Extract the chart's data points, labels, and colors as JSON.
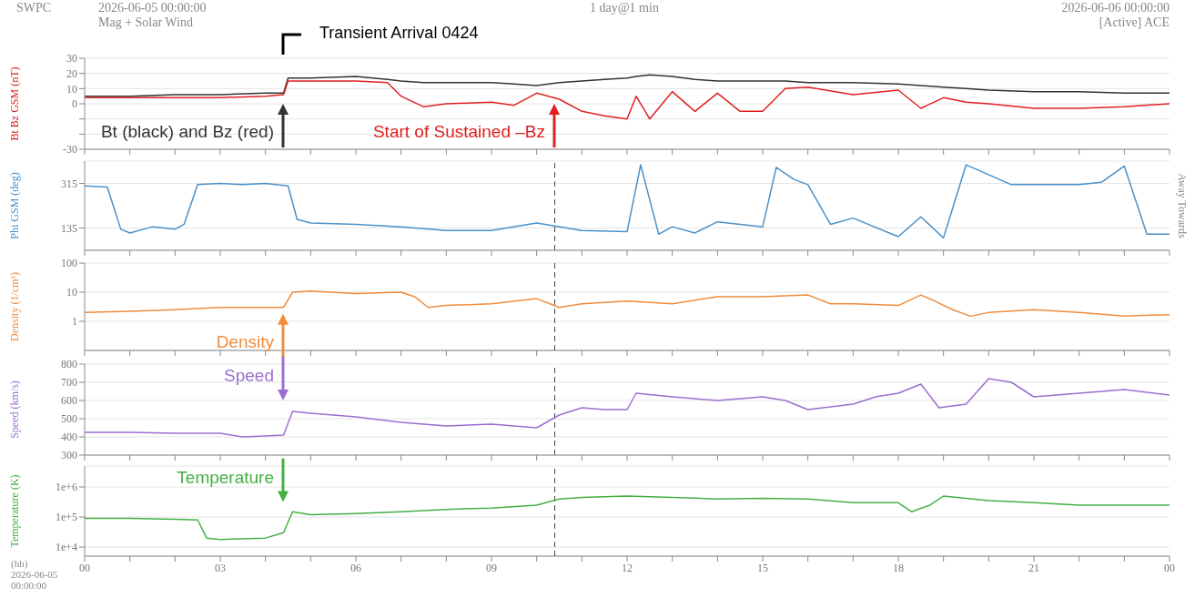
{
  "chart_data": [
    {
      "type": "line",
      "ylabel": "Bt  Bz GSM (nT)",
      "tick_labels": "y",
      "grid": "y",
      "annotations": [
        "SWPC",
        "2026-06-05 00:00:00",
        "Mag + Solar Wind",
        "1 day@1 min",
        "2026-06-06 00:00:00",
        "[Active] ACE",
        "Bt (black) and Bz (red)",
        "Start of Sustained –Bz",
        "Transient Arrival 0424"
      ],
      "x": [
        0,
        1,
        2,
        3,
        4,
        4.4,
        4.5,
        5,
        6,
        6.7,
        7,
        7.5,
        8,
        9,
        9.5,
        10,
        10.5,
        11,
        11.5,
        12,
        12.2,
        12.5,
        13,
        13.5,
        14,
        14.5,
        15,
        15.5,
        16,
        17,
        18,
        18.5,
        19,
        19.5,
        20,
        21,
        22,
        23,
        24
      ],
      "series": [
        {
          "color": "#333333",
          "values": [
            5,
            5,
            6,
            6,
            7,
            7,
            17,
            17,
            18,
            16,
            15,
            14,
            14,
            14,
            13,
            12,
            14,
            15,
            16,
            17,
            18,
            19,
            18,
            16,
            15,
            15,
            15,
            15,
            14,
            14,
            13,
            12,
            11,
            10,
            9,
            8,
            8,
            7,
            7
          ]
        },
        {
          "color": "#e02020",
          "values": [
            4,
            4,
            4,
            4,
            5,
            6,
            15,
            15,
            15,
            14,
            5,
            -2,
            0,
            1,
            -1,
            7,
            3,
            -5,
            -8,
            -10,
            5,
            -10,
            8,
            -5,
            7,
            -5,
            -5,
            10,
            11,
            6,
            9,
            -3,
            4,
            1,
            0,
            -3,
            -3,
            -2,
            0
          ]
        }
      ],
      "xlim": [
        0,
        24
      ],
      "xticks": [
        {
          "value": 0,
          "label": null
        },
        {
          "value": 1,
          "label": null
        },
        {
          "value": 2,
          "label": null
        },
        {
          "value": 3,
          "label": null
        },
        {
          "value": 4,
          "label": null
        },
        {
          "value": 5,
          "label": null
        },
        {
          "value": 6,
          "label": null
        },
        {
          "value": 7,
          "label": null
        },
        {
          "value": 8,
          "label": null
        },
        {
          "value": 9,
          "label": null
        },
        {
          "value": 10,
          "label": null
        },
        {
          "value": 11,
          "label": null
        },
        {
          "value": 12,
          "label": null
        },
        {
          "value": 13,
          "label": null
        },
        {
          "value": 14,
          "label": null
        },
        {
          "value": 15,
          "label": null
        },
        {
          "value": 16,
          "label": null
        },
        {
          "value": 17,
          "label": null
        },
        {
          "value": 18,
          "label": null
        },
        {
          "value": 19,
          "label": null
        },
        {
          "value": 20,
          "label": null
        },
        {
          "value": 21,
          "label": null
        },
        {
          "value": 22,
          "label": null
        },
        {
          "value": 23,
          "label": null
        },
        {
          "value": 24,
          "label": null
        }
      ],
      "ylim": [
        -30,
        30
      ],
      "yticks": [
        -30,
        {
          "value": -20,
          "label": null
        },
        {
          "value": -10,
          "label": null
        },
        0,
        10,
        20,
        30
      ]
    },
    {
      "type": "line",
      "ylabel": "Phi GSM (deg)",
      "tick_labels": "y",
      "grid": "y",
      "annotations": [
        "Away  Towards"
      ],
      "ref_lines": [
        {
          "axis": "x",
          "value": 10.4,
          "color": "#444444",
          "line_style": "dashed"
        }
      ],
      "x": [
        0,
        0.5,
        0.8,
        1,
        1.5,
        2,
        2.2,
        2.5,
        3,
        3.5,
        4,
        4.5,
        4.7,
        5,
        6,
        7,
        8,
        9,
        10,
        11,
        12,
        12.3,
        12.7,
        13,
        13.5,
        14,
        15,
        15.3,
        15.7,
        16,
        16.5,
        17,
        18,
        18.5,
        19,
        19.5,
        20.5,
        21,
        22,
        22.5,
        23,
        23.5,
        24
      ],
      "series": [
        {
          "color": "#4a90c8",
          "values": [
            305,
            300,
            130,
            115,
            140,
            130,
            150,
            310,
            315,
            310,
            315,
            305,
            170,
            155,
            150,
            140,
            125,
            125,
            155,
            125,
            120,
            390,
            110,
            140,
            115,
            160,
            140,
            380,
            330,
            310,
            150,
            175,
            100,
            180,
            95,
            390,
            310,
            310,
            310,
            320,
            385,
            110,
            110
          ]
        }
      ],
      "xlim": [
        0,
        24
      ],
      "xticks": [
        {
          "value": 0,
          "label": null
        },
        {
          "value": 1,
          "label": null
        },
        {
          "value": 2,
          "label": null
        },
        {
          "value": 3,
          "label": null
        },
        {
          "value": 4,
          "label": null
        },
        {
          "value": 5,
          "label": null
        },
        {
          "value": 6,
          "label": null
        },
        {
          "value": 7,
          "label": null
        },
        {
          "value": 8,
          "label": null
        },
        {
          "value": 9,
          "label": null
        },
        {
          "value": 10,
          "label": null
        },
        {
          "value": 11,
          "label": null
        },
        {
          "value": 12,
          "label": null
        },
        {
          "value": 13,
          "label": null
        },
        {
          "value": 14,
          "label": null
        },
        {
          "value": 15,
          "label": null
        },
        {
          "value": 16,
          "label": null
        },
        {
          "value": 17,
          "label": null
        },
        {
          "value": 18,
          "label": null
        },
        {
          "value": 19,
          "label": null
        },
        {
          "value": 20,
          "label": null
        },
        {
          "value": 21,
          "label": null
        },
        {
          "value": 22,
          "label": null
        },
        {
          "value": 23,
          "label": null
        },
        {
          "value": 24,
          "label": null
        }
      ],
      "ylim": [
        45,
        405
      ],
      "yticks": [
        135,
        315
      ]
    },
    {
      "type": "line",
      "ylabel": "Density (1/cm³)",
      "tick_labels": "y",
      "grid": "y",
      "log": "y",
      "annotations": [
        "Density"
      ],
      "ref_lines": [
        {
          "axis": "x",
          "value": 10.4,
          "color": "#444444",
          "line_style": "dashed"
        }
      ],
      "x": [
        0,
        1,
        2,
        3,
        4,
        4.4,
        4.6,
        5,
        6,
        7,
        7.3,
        7.6,
        8,
        9,
        10,
        10.5,
        11,
        12,
        13,
        14,
        15,
        16,
        16.5,
        17,
        18,
        18.5,
        18.8,
        19.2,
        19.6,
        20,
        21,
        22,
        23,
        24
      ],
      "series": [
        {
          "color": "#f08c3c",
          "values": [
            2,
            2.2,
            2.5,
            3,
            3,
            3,
            10,
            11,
            9,
            10,
            7,
            3,
            3.5,
            4,
            6,
            3,
            4,
            5,
            4,
            7,
            7,
            8,
            4,
            4,
            3.5,
            8,
            5,
            2.5,
            1.5,
            2,
            2.5,
            2,
            1.5,
            1.7
          ]
        }
      ],
      "xlim": [
        0,
        24
      ],
      "xticks": [
        {
          "value": 0,
          "label": null
        },
        {
          "value": 1,
          "label": null
        },
        {
          "value": 2,
          "label": null
        },
        {
          "value": 3,
          "label": null
        },
        {
          "value": 4,
          "label": null
        },
        {
          "value": 5,
          "label": null
        },
        {
          "value": 6,
          "label": null
        },
        {
          "value": 7,
          "label": null
        },
        {
          "value": 8,
          "label": null
        },
        {
          "value": 9,
          "label": null
        },
        {
          "value": 10,
          "label": null
        },
        {
          "value": 11,
          "label": null
        },
        {
          "value": 12,
          "label": null
        },
        {
          "value": 13,
          "label": null
        },
        {
          "value": 14,
          "label": null
        },
        {
          "value": 15,
          "label": null
        },
        {
          "value": 16,
          "label": null
        },
        {
          "value": 17,
          "label": null
        },
        {
          "value": 18,
          "label": null
        },
        {
          "value": 19,
          "label": null
        },
        {
          "value": 20,
          "label": null
        },
        {
          "value": 21,
          "label": null
        },
        {
          "value": 22,
          "label": null
        },
        {
          "value": 23,
          "label": null
        },
        {
          "value": 24,
          "label": null
        }
      ],
      "ylim": [
        0.1,
        100
      ],
      "yticks": [
        1,
        10,
        100
      ]
    },
    {
      "type": "line",
      "ylabel": "Speed (km/s)",
      "tick_labels": "y",
      "grid": "y",
      "annotations": [
        "Speed"
      ],
      "ref_lines": [
        {
          "axis": "x",
          "value": 10.4,
          "color": "#444444",
          "line_style": "dashed"
        }
      ],
      "x": [
        0,
        1,
        2,
        3,
        3.5,
        4,
        4.4,
        4.6,
        5,
        6,
        7,
        8,
        9,
        10,
        10.5,
        11,
        11.5,
        12,
        12.2,
        13,
        14,
        15,
        15.5,
        16,
        17,
        17.5,
        18,
        18.5,
        18.9,
        19.5,
        20,
        20.5,
        21,
        22,
        23,
        24
      ],
      "series": [
        {
          "color": "#9b6fd0",
          "values": [
            425,
            425,
            420,
            420,
            400,
            405,
            410,
            540,
            530,
            510,
            480,
            460,
            470,
            450,
            520,
            560,
            550,
            550,
            640,
            620,
            600,
            620,
            600,
            550,
            580,
            620,
            640,
            690,
            560,
            580,
            720,
            700,
            620,
            640,
            660,
            630
          ]
        }
      ],
      "xlim": [
        0,
        24
      ],
      "xticks": [
        {
          "value": 0,
          "label": null
        },
        {
          "value": 1,
          "label": null
        },
        {
          "value": 2,
          "label": null
        },
        {
          "value": 3,
          "label": null
        },
        {
          "value": 4,
          "label": null
        },
        {
          "value": 5,
          "label": null
        },
        {
          "value": 6,
          "label": null
        },
        {
          "value": 7,
          "label": null
        },
        {
          "value": 8,
          "label": null
        },
        {
          "value": 9,
          "label": null
        },
        {
          "value": 10,
          "label": null
        },
        {
          "value": 11,
          "label": null
        },
        {
          "value": 12,
          "label": null
        },
        {
          "value": 13,
          "label": null
        },
        {
          "value": 14,
          "label": null
        },
        {
          "value": 15,
          "label": null
        },
        {
          "value": 16,
          "label": null
        },
        {
          "value": 17,
          "label": null
        },
        {
          "value": 18,
          "label": null
        },
        {
          "value": 19,
          "label": null
        },
        {
          "value": 20,
          "label": null
        },
        {
          "value": 21,
          "label": null
        },
        {
          "value": 22,
          "label": null
        },
        {
          "value": 23,
          "label": null
        },
        {
          "value": 24,
          "label": null
        }
      ],
      "ylim": [
        300,
        800
      ],
      "yticks": [
        300,
        400,
        500,
        600,
        700,
        800
      ]
    },
    {
      "type": "line",
      "ylabel": "Temperature (K)",
      "grid": "y",
      "log": "y",
      "annotations": [
        "(hh)",
        "2026-06-05 00:00:00",
        "Temperature"
      ],
      "ref_lines": [
        {
          "axis": "x",
          "value": 10.4,
          "color": "#444444",
          "line_style": "dashed"
        }
      ],
      "x": [
        0,
        1,
        2,
        2.5,
        2.7,
        3,
        4,
        4.4,
        4.6,
        5,
        6,
        7,
        8,
        9,
        10,
        10.5,
        11,
        12,
        13,
        14,
        15,
        16,
        17,
        18,
        18.3,
        18.7,
        19,
        20,
        21,
        22,
        23,
        24
      ],
      "series": [
        {
          "color": "#44b044",
          "values": [
            90000,
            90000,
            85000,
            80000,
            20000,
            18000,
            20000,
            30000,
            150000,
            120000,
            130000,
            150000,
            180000,
            200000,
            250000,
            400000,
            450000,
            500000,
            450000,
            400000,
            420000,
            400000,
            300000,
            300000,
            150000,
            250000,
            500000,
            350000,
            300000,
            250000,
            250000,
            250000
          ]
        }
      ],
      "xlim": [
        0,
        24
      ],
      "xticks": [
        {
          "value": 0,
          "label": "00"
        },
        {
          "value": 1,
          "label": null
        },
        {
          "value": 2,
          "label": null
        },
        {
          "value": 3,
          "label": "03"
        },
        {
          "value": 4,
          "label": null
        },
        {
          "value": 5,
          "label": null
        },
        {
          "value": 6,
          "label": "06"
        },
        {
          "value": 7,
          "label": null
        },
        {
          "value": 8,
          "label": null
        },
        {
          "value": 9,
          "label": "09"
        },
        {
          "value": 10,
          "label": null
        },
        {
          "value": 11,
          "label": null
        },
        {
          "value": 12,
          "label": "12"
        },
        {
          "value": 13,
          "label": null
        },
        {
          "value": 14,
          "label": null
        },
        {
          "value": 15,
          "label": "15"
        },
        {
          "value": 16,
          "label": null
        },
        {
          "value": 17,
          "label": null
        },
        {
          "value": 18,
          "label": "18"
        },
        {
          "value": 19,
          "label": null
        },
        {
          "value": 20,
          "label": null
        },
        {
          "value": 21,
          "label": "21"
        },
        {
          "value": 22,
          "label": null
        },
        {
          "value": 23,
          "label": null
        },
        {
          "value": 24,
          "label": "00"
        }
      ],
      "ylim": [
        5000,
        5000000
      ],
      "yticks": [
        {
          "value": 10000,
          "label": "1e+4"
        },
        {
          "value": 100000,
          "label": "1e+5"
        },
        {
          "value": 1000000,
          "label": "1e+6"
        }
      ]
    }
  ]
}
